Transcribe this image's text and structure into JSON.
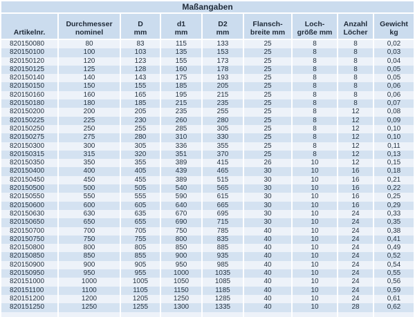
{
  "title": "Maßangaben",
  "colors": {
    "band": "#cbdcee",
    "row_light": "#edf2f9",
    "row_dark": "#d4e2f1",
    "text": "#243240",
    "separator": "#ffffff"
  },
  "table": {
    "columns": [
      {
        "line1": "Artikelnr.",
        "line2": ""
      },
      {
        "line1": "Durchmesser",
        "line2": "nominel"
      },
      {
        "line1": "D",
        "line2": "mm"
      },
      {
        "line1": "d1",
        "line2": "mm"
      },
      {
        "line1": "D2",
        "line2": "mm"
      },
      {
        "line1": "Flansch-",
        "line2": "breite mm"
      },
      {
        "line1": "Loch-",
        "line2": "größe mm"
      },
      {
        "line1": "Anzahl",
        "line2": "Löcher"
      },
      {
        "line1": "Gewicht",
        "line2": "kg"
      }
    ],
    "rows": [
      [
        "820150080",
        "80",
        "83",
        "115",
        "133",
        "25",
        "8",
        "8",
        "0,02"
      ],
      [
        "820150100",
        "100",
        "103",
        "135",
        "153",
        "25",
        "8",
        "8",
        "0,03"
      ],
      [
        "820150120",
        "120",
        "123",
        "155",
        "173",
        "25",
        "8",
        "8",
        "0,04"
      ],
      [
        "820150125",
        "125",
        "128",
        "160",
        "178",
        "25",
        "8",
        "8",
        "0,05"
      ],
      [
        "820150140",
        "140",
        "143",
        "175",
        "193",
        "25",
        "8",
        "8",
        "0,05"
      ],
      [
        "820150150",
        "150",
        "155",
        "185",
        "205",
        "25",
        "8",
        "8",
        "0,06"
      ],
      [
        "820150160",
        "160",
        "165",
        "195",
        "215",
        "25",
        "8",
        "8",
        "0,06"
      ],
      [
        "820150180",
        "180",
        "185",
        "215",
        "235",
        "25",
        "8",
        "8",
        "0,07"
      ],
      [
        "820150200",
        "200",
        "205",
        "235",
        "255",
        "25",
        "8",
        "12",
        "0,08"
      ],
      [
        "820150225",
        "225",
        "230",
        "260",
        "280",
        "25",
        "8",
        "12",
        "0,09"
      ],
      [
        "820150250",
        "250",
        "255",
        "285",
        "305",
        "25",
        "8",
        "12",
        "0,10"
      ],
      [
        "820150275",
        "275",
        "280",
        "310",
        "330",
        "25",
        "8",
        "12",
        "0,10"
      ],
      [
        "820150300",
        "300",
        "305",
        "336",
        "355",
        "25",
        "8",
        "12",
        "0,11"
      ],
      [
        "820150315",
        "315",
        "320",
        "351",
        "370",
        "25",
        "8",
        "12",
        "0,13"
      ],
      [
        "820150350",
        "350",
        "355",
        "389",
        "415",
        "26",
        "10",
        "12",
        "0,15"
      ],
      [
        "820150400",
        "400",
        "405",
        "439",
        "465",
        "30",
        "10",
        "16",
        "0,18"
      ],
      [
        "820150450",
        "450",
        "455",
        "389",
        "515",
        "30",
        "10",
        "16",
        "0,21"
      ],
      [
        "820150500",
        "500",
        "505",
        "540",
        "565",
        "30",
        "10",
        "16",
        "0,22"
      ],
      [
        "820150550",
        "550",
        "555",
        "590",
        "615",
        "30",
        "10",
        "16",
        "0,25"
      ],
      [
        "820150600",
        "600",
        "605",
        "640",
        "665",
        "30",
        "10",
        "16",
        "0,29"
      ],
      [
        "820150630",
        "630",
        "635",
        "670",
        "695",
        "30",
        "10",
        "24",
        "0,33"
      ],
      [
        "820150650",
        "650",
        "655",
        "690",
        "715",
        "30",
        "10",
        "24",
        "0,35"
      ],
      [
        "820150700",
        "700",
        "705",
        "750",
        "785",
        "40",
        "10",
        "24",
        "0,38"
      ],
      [
        "820150750",
        "750",
        "755",
        "800",
        "835",
        "40",
        "10",
        "24",
        "0,41"
      ],
      [
        "820150800",
        "800",
        "805",
        "850",
        "885",
        "40",
        "10",
        "24",
        "0,49"
      ],
      [
        "820150850",
        "850",
        "855",
        "900",
        "935",
        "40",
        "10",
        "24",
        "0,52"
      ],
      [
        "820150900",
        "900",
        "905",
        "950",
        "985",
        "40",
        "10",
        "24",
        "0,54"
      ],
      [
        "820150950",
        "950",
        "955",
        "1000",
        "1035",
        "40",
        "10",
        "24",
        "0,55"
      ],
      [
        "820151000",
        "1000",
        "1005",
        "1050",
        "1085",
        "40",
        "10",
        "24",
        "0,56"
      ],
      [
        "820151100",
        "1100",
        "1105",
        "1150",
        "1185",
        "40",
        "10",
        "24",
        "0,59"
      ],
      [
        "820151200",
        "1200",
        "1205",
        "1250",
        "1285",
        "40",
        "10",
        "24",
        "0,61"
      ],
      [
        "820151250",
        "1250",
        "1255",
        "1300",
        "1335",
        "40",
        "10",
        "28",
        "0,62"
      ]
    ]
  }
}
